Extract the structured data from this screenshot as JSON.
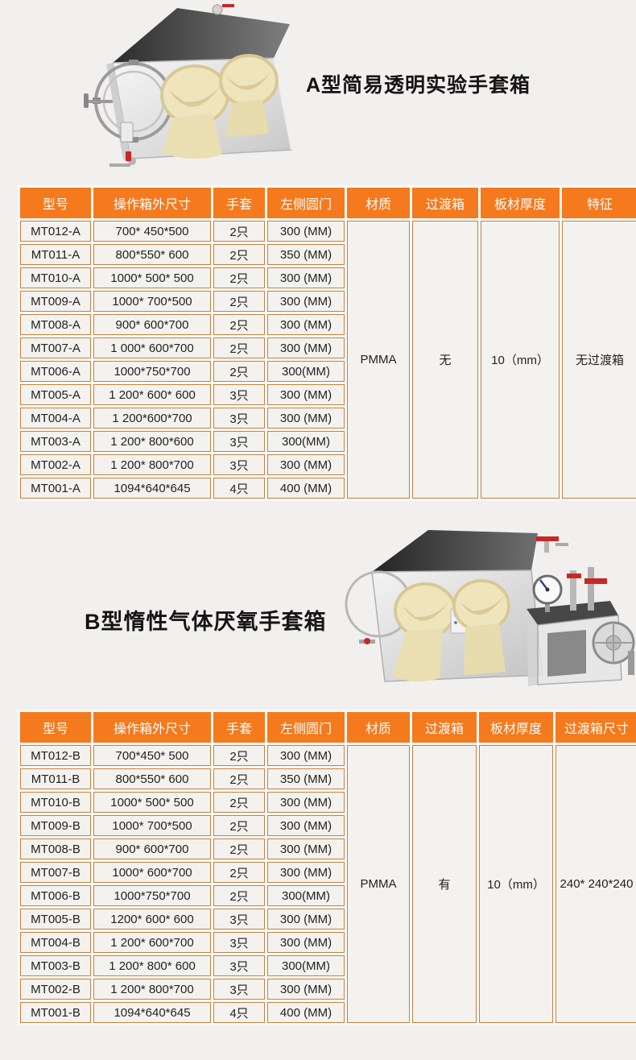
{
  "colors": {
    "header_bg": "#f5791d",
    "header_text": "#ffffff",
    "cell_border": "#c5823f",
    "cell_bg": "#f3f2ef",
    "page_bg": "#f1f0ee",
    "title_text": "#141414",
    "glove_color": "#efe5bd",
    "valve_red": "#c62828"
  },
  "section_a": {
    "title": "A型简易透明实验手套箱",
    "image": "a-type-transparent-glovebox-photo",
    "table": {
      "headers": [
        "型号",
        "操作箱外尺寸",
        "手套",
        "左侧圆门",
        "材质",
        "过渡箱",
        "板材厚度",
        "特征"
      ],
      "rows": [
        [
          "MT012-A",
          "700* 450*500",
          "2只",
          "300 (MM)"
        ],
        [
          "MT011-A",
          "800*550* 600",
          "2只",
          "350 (MM)"
        ],
        [
          "MT010-A",
          "1000* 500* 500",
          "2只",
          "300 (MM)"
        ],
        [
          "MT009-A",
          "1000* 700*500",
          "2只",
          "300 (MM)"
        ],
        [
          "MT008-A",
          "900* 600*700",
          "2只",
          "300 (MM)"
        ],
        [
          "MT007-A",
          "1 000* 600*700",
          "2只",
          "300 (MM)"
        ],
        [
          "MT006-A",
          "1000*750*700",
          "2只",
          "300(MM)"
        ],
        [
          "MT005-A",
          "1 200* 600* 600",
          "3只",
          "300 (MM)"
        ],
        [
          "MT004-A",
          "1 200*600*700",
          "3只",
          "300 (MM)"
        ],
        [
          "MT003-A",
          "1 200* 800*600",
          "3只",
          "300(MM)"
        ],
        [
          "MT002-A",
          "1 200* 800*700",
          "3只",
          "300 (MM)"
        ],
        [
          "MT001-A",
          "1094*640*645",
          "4只",
          "400 (MM)"
        ]
      ],
      "material": "PMMA",
      "transition": "无",
      "thickness": "10（mm）",
      "feature": "无过渡箱"
    }
  },
  "section_b": {
    "title": "B型惰性气体厌氧手套箱",
    "image": "b-type-anaerobic-glovebox-photo",
    "table": {
      "headers": [
        "型号",
        "操作箱外尺寸",
        "手套",
        "左侧圆门",
        "材质",
        "过渡箱",
        "板材厚度",
        "过渡箱尺寸"
      ],
      "rows": [
        [
          "MT012-B",
          "700*450* 500",
          "2只",
          "300 (MM)"
        ],
        [
          "MT011-B",
          "800*550* 600",
          "2只",
          "350 (MM)"
        ],
        [
          "MT010-B",
          "1000* 500* 500",
          "2只",
          "300 (MM)"
        ],
        [
          "MT009-B",
          "1000* 700*500",
          "2只",
          "300 (MM)"
        ],
        [
          "MT008-B",
          "900* 600*700",
          "2只",
          "300 (MM)"
        ],
        [
          "MT007-B",
          "1000* 600*700",
          "2只",
          "300 (MM)"
        ],
        [
          "MT006-B",
          "1000*750*700",
          "2只",
          "300(MM)"
        ],
        [
          "MT005-B",
          "1200* 600* 600",
          "3只",
          "300 (MM)"
        ],
        [
          "MT004-B",
          "1 200* 600*700",
          "3只",
          "300 (MM)"
        ],
        [
          "MT003-B",
          "1 200* 800* 600",
          "3只",
          "300(MM)"
        ],
        [
          "MT002-B",
          "1 200* 800*700",
          "3只",
          "300 (MM)"
        ],
        [
          "MT001-B",
          "1094*640*645",
          "4只",
          "400 (MM)"
        ]
      ],
      "material": "PMMA",
      "transition": "有",
      "thickness": "10（mm）",
      "transition_size": "240* 240*240"
    }
  }
}
